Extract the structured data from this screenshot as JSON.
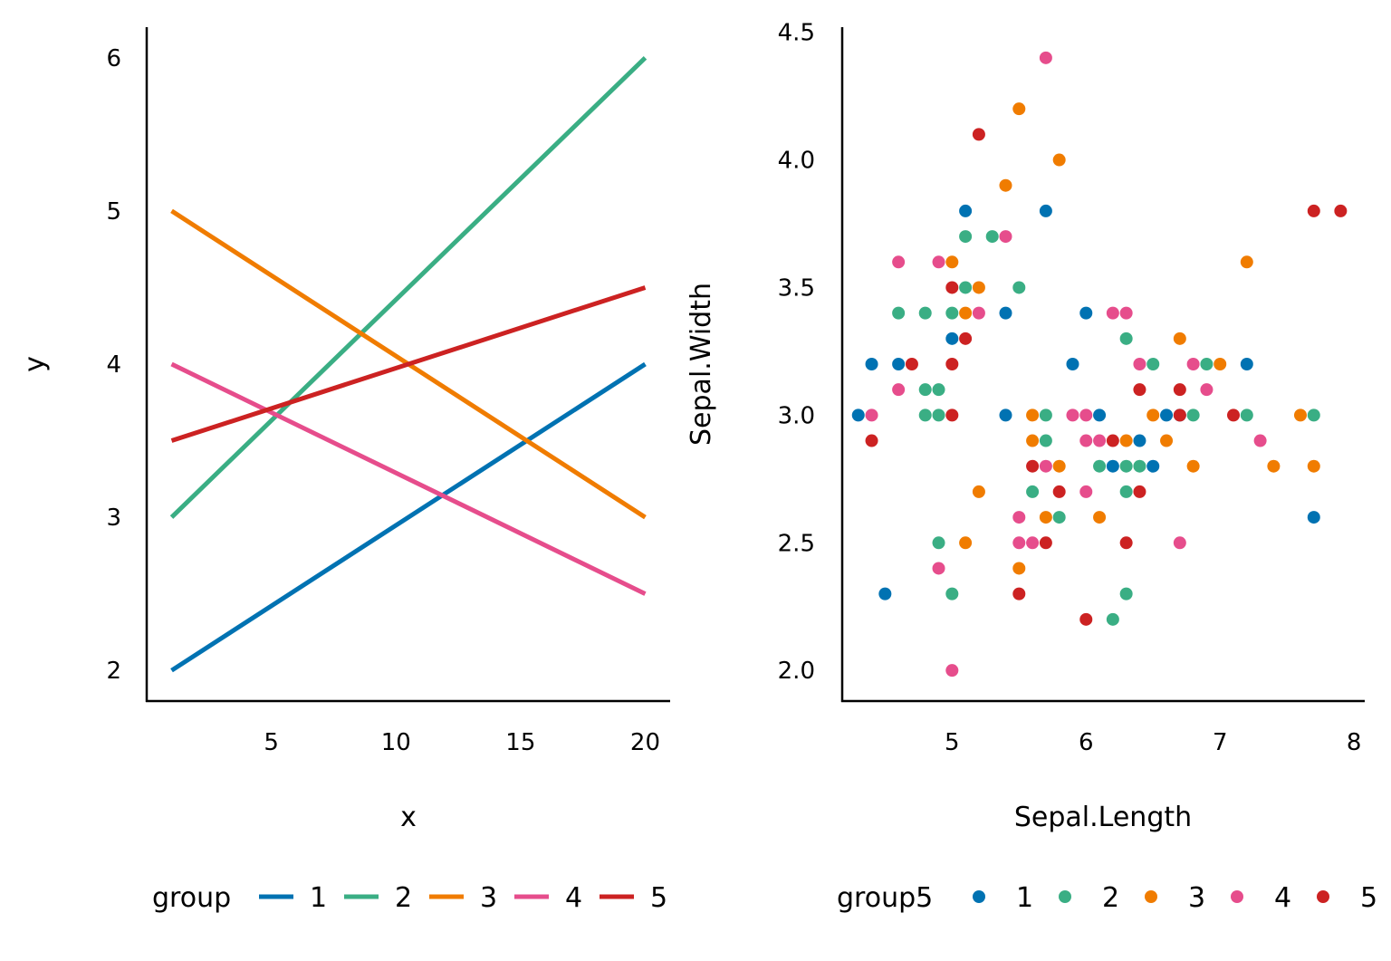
{
  "chart_data": [
    {
      "type": "line",
      "xlabel": "x",
      "ylabel": "y",
      "xlim": [
        0,
        21
      ],
      "ylim": [
        1.8,
        6.2
      ],
      "xticks": [
        5,
        10,
        15,
        20
      ],
      "yticks": [
        2,
        3,
        4,
        5,
        6
      ],
      "grid": false,
      "legend": {
        "title": "group",
        "placement": "bottom",
        "entries": [
          "1",
          "2",
          "3",
          "4",
          "5"
        ]
      },
      "series": [
        {
          "name": "1",
          "color": "#0072B2",
          "x": [
            1,
            20
          ],
          "y": [
            2,
            4
          ]
        },
        {
          "name": "2",
          "color": "#3AAE84",
          "x": [
            1,
            20
          ],
          "y": [
            3,
            6
          ]
        },
        {
          "name": "3",
          "color": "#F07C00",
          "x": [
            1,
            20
          ],
          "y": [
            5,
            3
          ]
        },
        {
          "name": "4",
          "color": "#E64D8C",
          "x": [
            1,
            20
          ],
          "y": [
            4,
            2.5
          ]
        },
        {
          "name": "5",
          "color": "#CC2222",
          "x": [
            1,
            20
          ],
          "y": [
            3.5,
            4.5
          ]
        }
      ]
    },
    {
      "type": "scatter",
      "xlabel": "Sepal.Length",
      "ylabel": "Sepal.Width",
      "xlim": [
        4.18,
        8.08
      ],
      "ylim": [
        1.88,
        4.52
      ],
      "xticks": [
        5,
        6,
        7,
        8
      ],
      "yticks": [
        "2.0",
        "2.5",
        "3.0",
        "3.5",
        "4.0",
        "4.5"
      ],
      "grid": false,
      "legend": {
        "title": "group5",
        "placement": "bottom",
        "entries": [
          "1",
          "2",
          "3",
          "4",
          "5"
        ]
      },
      "series": [
        {
          "name": "1",
          "color": "#0072B2",
          "points": [
            [
              4.3,
              3.0
            ],
            [
              4.4,
              3.2
            ],
            [
              4.5,
              2.3
            ],
            [
              4.6,
              3.2
            ],
            [
              5.0,
              3.3
            ],
            [
              5.1,
              3.8
            ],
            [
              5.4,
              3.4
            ],
            [
              5.4,
              3.0
            ],
            [
              5.7,
              3.8
            ],
            [
              5.9,
              3.2
            ],
            [
              6.0,
              3.4
            ],
            [
              6.1,
              3.0
            ],
            [
              6.2,
              2.8
            ],
            [
              6.4,
              2.9
            ],
            [
              6.5,
              2.8
            ],
            [
              6.6,
              3.0
            ],
            [
              6.7,
              3.0
            ],
            [
              7.2,
              3.2
            ],
            [
              7.7,
              2.6
            ]
          ]
        },
        {
          "name": "2",
          "color": "#3AAE84",
          "points": [
            [
              4.6,
              3.4
            ],
            [
              4.8,
              3.4
            ],
            [
              4.8,
              3.1
            ],
            [
              4.8,
              3.0
            ],
            [
              4.9,
              3.1
            ],
            [
              4.9,
              3.0
            ],
            [
              4.9,
              2.5
            ],
            [
              5.0,
              3.4
            ],
            [
              5.0,
              2.3
            ],
            [
              5.1,
              3.7
            ],
            [
              5.1,
              3.5
            ],
            [
              5.3,
              3.7
            ],
            [
              5.5,
              3.5
            ],
            [
              5.6,
              2.7
            ],
            [
              5.7,
              3.0
            ],
            [
              5.7,
              2.9
            ],
            [
              5.8,
              2.6
            ],
            [
              6.1,
              2.8
            ],
            [
              6.2,
              2.2
            ],
            [
              6.3,
              3.3
            ],
            [
              6.3,
              2.8
            ],
            [
              6.3,
              2.7
            ],
            [
              6.3,
              2.3
            ],
            [
              6.4,
              2.8
            ],
            [
              6.5,
              3.2
            ],
            [
              6.8,
              3.0
            ],
            [
              6.9,
              3.2
            ],
            [
              7.2,
              3.0
            ],
            [
              7.7,
              3.0
            ]
          ]
        },
        {
          "name": "3",
          "color": "#F07C00",
          "points": [
            [
              5.0,
              3.6
            ],
            [
              5.1,
              3.4
            ],
            [
              5.1,
              2.5
            ],
            [
              5.2,
              3.5
            ],
            [
              5.2,
              2.7
            ],
            [
              5.4,
              3.9
            ],
            [
              5.5,
              4.2
            ],
            [
              5.5,
              2.4
            ],
            [
              5.6,
              3.0
            ],
            [
              5.6,
              2.9
            ],
            [
              5.7,
              2.6
            ],
            [
              5.8,
              4.0
            ],
            [
              5.8,
              2.8
            ],
            [
              6.1,
              2.6
            ],
            [
              6.3,
              2.9
            ],
            [
              6.5,
              3.0
            ],
            [
              6.6,
              2.9
            ],
            [
              6.7,
              3.3
            ],
            [
              6.8,
              2.8
            ],
            [
              7.0,
              3.2
            ],
            [
              7.2,
              3.6
            ],
            [
              7.4,
              2.8
            ],
            [
              7.6,
              3.0
            ],
            [
              7.7,
              2.8
            ]
          ]
        },
        {
          "name": "4",
          "color": "#E64D8C",
          "points": [
            [
              4.4,
              3.0
            ],
            [
              4.6,
              3.6
            ],
            [
              4.6,
              3.1
            ],
            [
              4.9,
              3.6
            ],
            [
              4.9,
              2.4
            ],
            [
              5.0,
              2.0
            ],
            [
              5.2,
              3.4
            ],
            [
              5.4,
              3.7
            ],
            [
              5.5,
              2.6
            ],
            [
              5.5,
              2.5
            ],
            [
              5.6,
              2.5
            ],
            [
              5.7,
              4.4
            ],
            [
              5.7,
              2.8
            ],
            [
              5.9,
              3.0
            ],
            [
              6.0,
              3.0
            ],
            [
              6.0,
              2.9
            ],
            [
              6.0,
              2.7
            ],
            [
              6.1,
              2.9
            ],
            [
              6.2,
              3.4
            ],
            [
              6.3,
              3.4
            ],
            [
              6.4,
              3.2
            ],
            [
              6.7,
              2.5
            ],
            [
              6.8,
              3.2
            ],
            [
              6.9,
              3.1
            ],
            [
              7.3,
              2.9
            ]
          ]
        },
        {
          "name": "5",
          "color": "#CC2222",
          "points": [
            [
              4.4,
              2.9
            ],
            [
              4.7,
              3.2
            ],
            [
              5.0,
              3.5
            ],
            [
              5.0,
              3.2
            ],
            [
              5.0,
              3.0
            ],
            [
              5.1,
              3.3
            ],
            [
              5.2,
              4.1
            ],
            [
              5.5,
              2.3
            ],
            [
              5.6,
              2.8
            ],
            [
              5.7,
              2.5
            ],
            [
              5.8,
              2.7
            ],
            [
              6.0,
              2.2
            ],
            [
              6.2,
              2.9
            ],
            [
              6.3,
              2.5
            ],
            [
              6.4,
              3.1
            ],
            [
              6.4,
              2.7
            ],
            [
              6.7,
              3.1
            ],
            [
              6.7,
              3.0
            ],
            [
              7.1,
              3.0
            ],
            [
              7.7,
              3.8
            ],
            [
              7.9,
              3.8
            ]
          ]
        }
      ]
    }
  ]
}
